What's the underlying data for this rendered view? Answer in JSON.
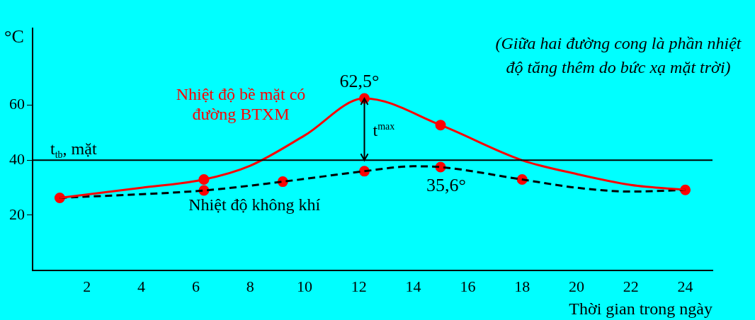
{
  "chart_data": {
    "type": "line",
    "xlabel": "Thời gian trong ngày",
    "ylabel": "°C",
    "xlim": [
      0,
      25
    ],
    "xticks": [
      2,
      4,
      6,
      8,
      10,
      12,
      14,
      16,
      18,
      20,
      22,
      24
    ],
    "ylim": [
      0,
      88
    ],
    "yticks": [
      20,
      40,
      60
    ],
    "grid": false,
    "legend": false,
    "marker": "none",
    "series": [
      {
        "name": "Nhiệt độ bề mặt có đường BTXM",
        "color": "#ff0000",
        "line_style": "solid",
        "x": [
          1,
          4,
          6.3,
          8,
          10,
          12.2,
          15,
          18,
          20,
          22,
          24
        ],
        "values": [
          26.3,
          30,
          33,
          38,
          49,
          62.5,
          52.8,
          40,
          35,
          31,
          29.2
        ]
      },
      {
        "name": "Nhiệt độ không khí",
        "color": "#000000",
        "line_style": "dashed",
        "x": [
          1,
          6.3,
          9.2,
          12.2,
          14,
          15,
          18,
          20,
          22,
          24
        ],
        "values": [
          26.3,
          29,
          32.2,
          36,
          37.8,
          37.5,
          33,
          30,
          28.6,
          29.2
        ]
      },
      {
        "type": "scatter",
        "color": "#ff0000",
        "marker": "circle",
        "x": [
          1,
          6.3,
          6.3,
          9.2,
          12.2,
          12.2,
          15,
          15,
          18,
          24
        ],
        "values": [
          26.3,
          33,
          29,
          32.2,
          62.5,
          36,
          52.8,
          37.5,
          33,
          29.2
        ]
      }
    ],
    "ref_lines": [
      {
        "axis": "y",
        "value": 40,
        "label": "t$_{tb}$, mặt",
        "color": "#000000"
      }
    ],
    "annotations": [
      {
        "text": "62,5°",
        "x": 12.2,
        "y": 62.5
      },
      {
        "text": "35,6°",
        "x": 15,
        "y": 37.5
      },
      "t$^{max}$",
      "(Giữa hai đường cong là phần nhiệt độ tăng thêm do bức xạ mặt trời)"
    ]
  }
}
